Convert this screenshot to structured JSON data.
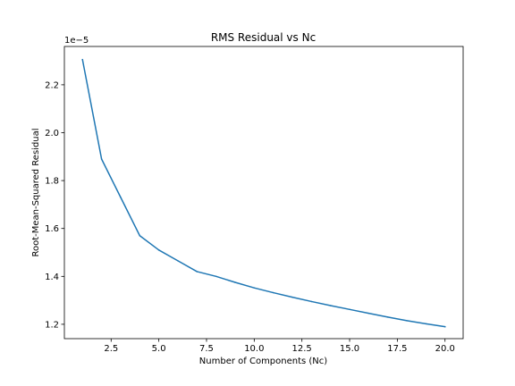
{
  "chart_data": {
    "type": "line",
    "title": "RMS Residual vs Nc",
    "xlabel": "Number of Components (Nc)",
    "ylabel": "Root-Mean-Squared Residual",
    "y_offset_label": "1e−5",
    "y_scale_factor": 1e-05,
    "xlim": [
      0.05,
      20.95
    ],
    "ylim": [
      1.14,
      2.36
    ],
    "x_ticks": [
      2.5,
      5.0,
      7.5,
      10.0,
      12.5,
      15.0,
      17.5,
      20.0
    ],
    "x_tick_labels": [
      "2.5",
      "5.0",
      "7.5",
      "10.0",
      "12.5",
      "15.0",
      "17.5",
      "20.0"
    ],
    "y_ticks": [
      1.2,
      1.4,
      1.6,
      1.8,
      2.0,
      2.2
    ],
    "y_tick_labels": [
      "1.2",
      "1.4",
      "1.6",
      "1.8",
      "2.0",
      "2.2"
    ],
    "grid": false,
    "line_color": "#1f77b4",
    "series": [
      {
        "x": [
          1,
          2,
          3,
          4,
          5,
          6,
          7,
          8,
          9,
          10,
          11,
          12,
          13,
          14,
          15,
          16,
          17,
          18,
          19,
          20
        ],
        "y": [
          2.305,
          1.89,
          1.73,
          1.57,
          1.51,
          1.465,
          1.42,
          1.4,
          1.375,
          1.352,
          1.332,
          1.313,
          1.295,
          1.278,
          1.262,
          1.246,
          1.23,
          1.215,
          1.202,
          1.19
        ]
      }
    ]
  }
}
